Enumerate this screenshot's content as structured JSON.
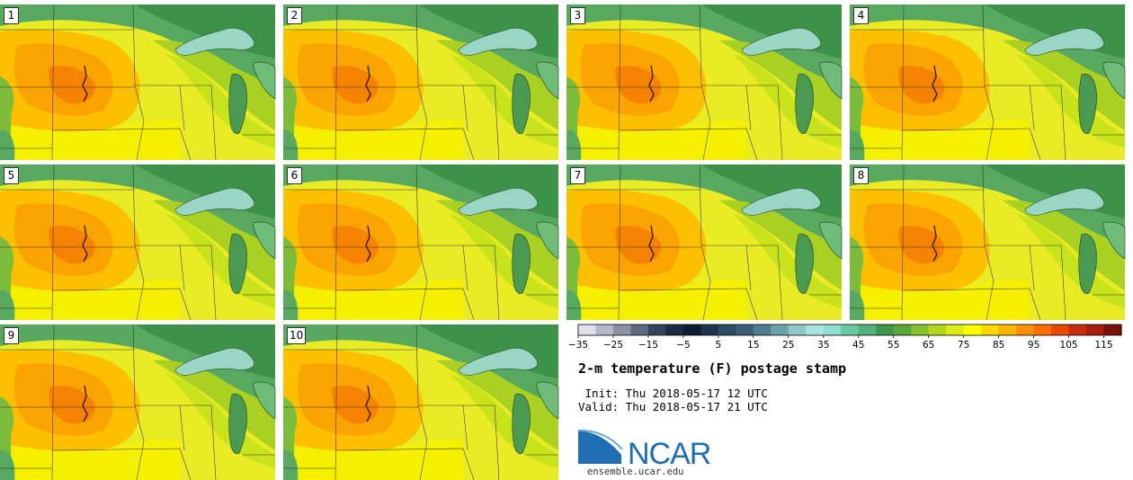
{
  "panels": [
    {
      "member": "1"
    },
    {
      "member": "2"
    },
    {
      "member": "3"
    },
    {
      "member": "4"
    },
    {
      "member": "5"
    },
    {
      "member": "6"
    },
    {
      "member": "7"
    },
    {
      "member": "8"
    },
    {
      "member": "9"
    },
    {
      "member": "10"
    }
  ],
  "colorbar": {
    "tick_labels": [
      "−35",
      "−25",
      "−15",
      "−5",
      "5",
      "15",
      "25",
      "35",
      "45",
      "55",
      "65",
      "75",
      "85",
      "95",
      "105",
      "115"
    ],
    "min": -35,
    "max": 120,
    "step": 5,
    "colors": [
      "#e0e0ea",
      "#b4b8c8",
      "#8a90a6",
      "#5f6982",
      "#34435c",
      "#1b2a40",
      "#101c30",
      "#1e3550",
      "#2e4d68",
      "#3b5e78",
      "#4f7d8e",
      "#6aa2ae",
      "#8fc6c8",
      "#a8e4e0",
      "#8ee0cc",
      "#6cc8a0",
      "#52b07c",
      "#3e9648",
      "#5aa83a",
      "#86c02a",
      "#b2d81e",
      "#dcec18",
      "#ffff00",
      "#ffd800",
      "#ffb400",
      "#ff9000",
      "#ff6c00",
      "#e84800",
      "#c82c10",
      "#a81c10",
      "#7a1008"
    ]
  },
  "title": "2-m temperature (F) postage stamp",
  "init_text": " Init: Thu 2018-05-17 12 UTC",
  "valid_text": "Valid: Thu 2018-05-17 21 UTC",
  "logo": {
    "name": "NCAR",
    "url": "ensemble.ucar.edu"
  }
}
